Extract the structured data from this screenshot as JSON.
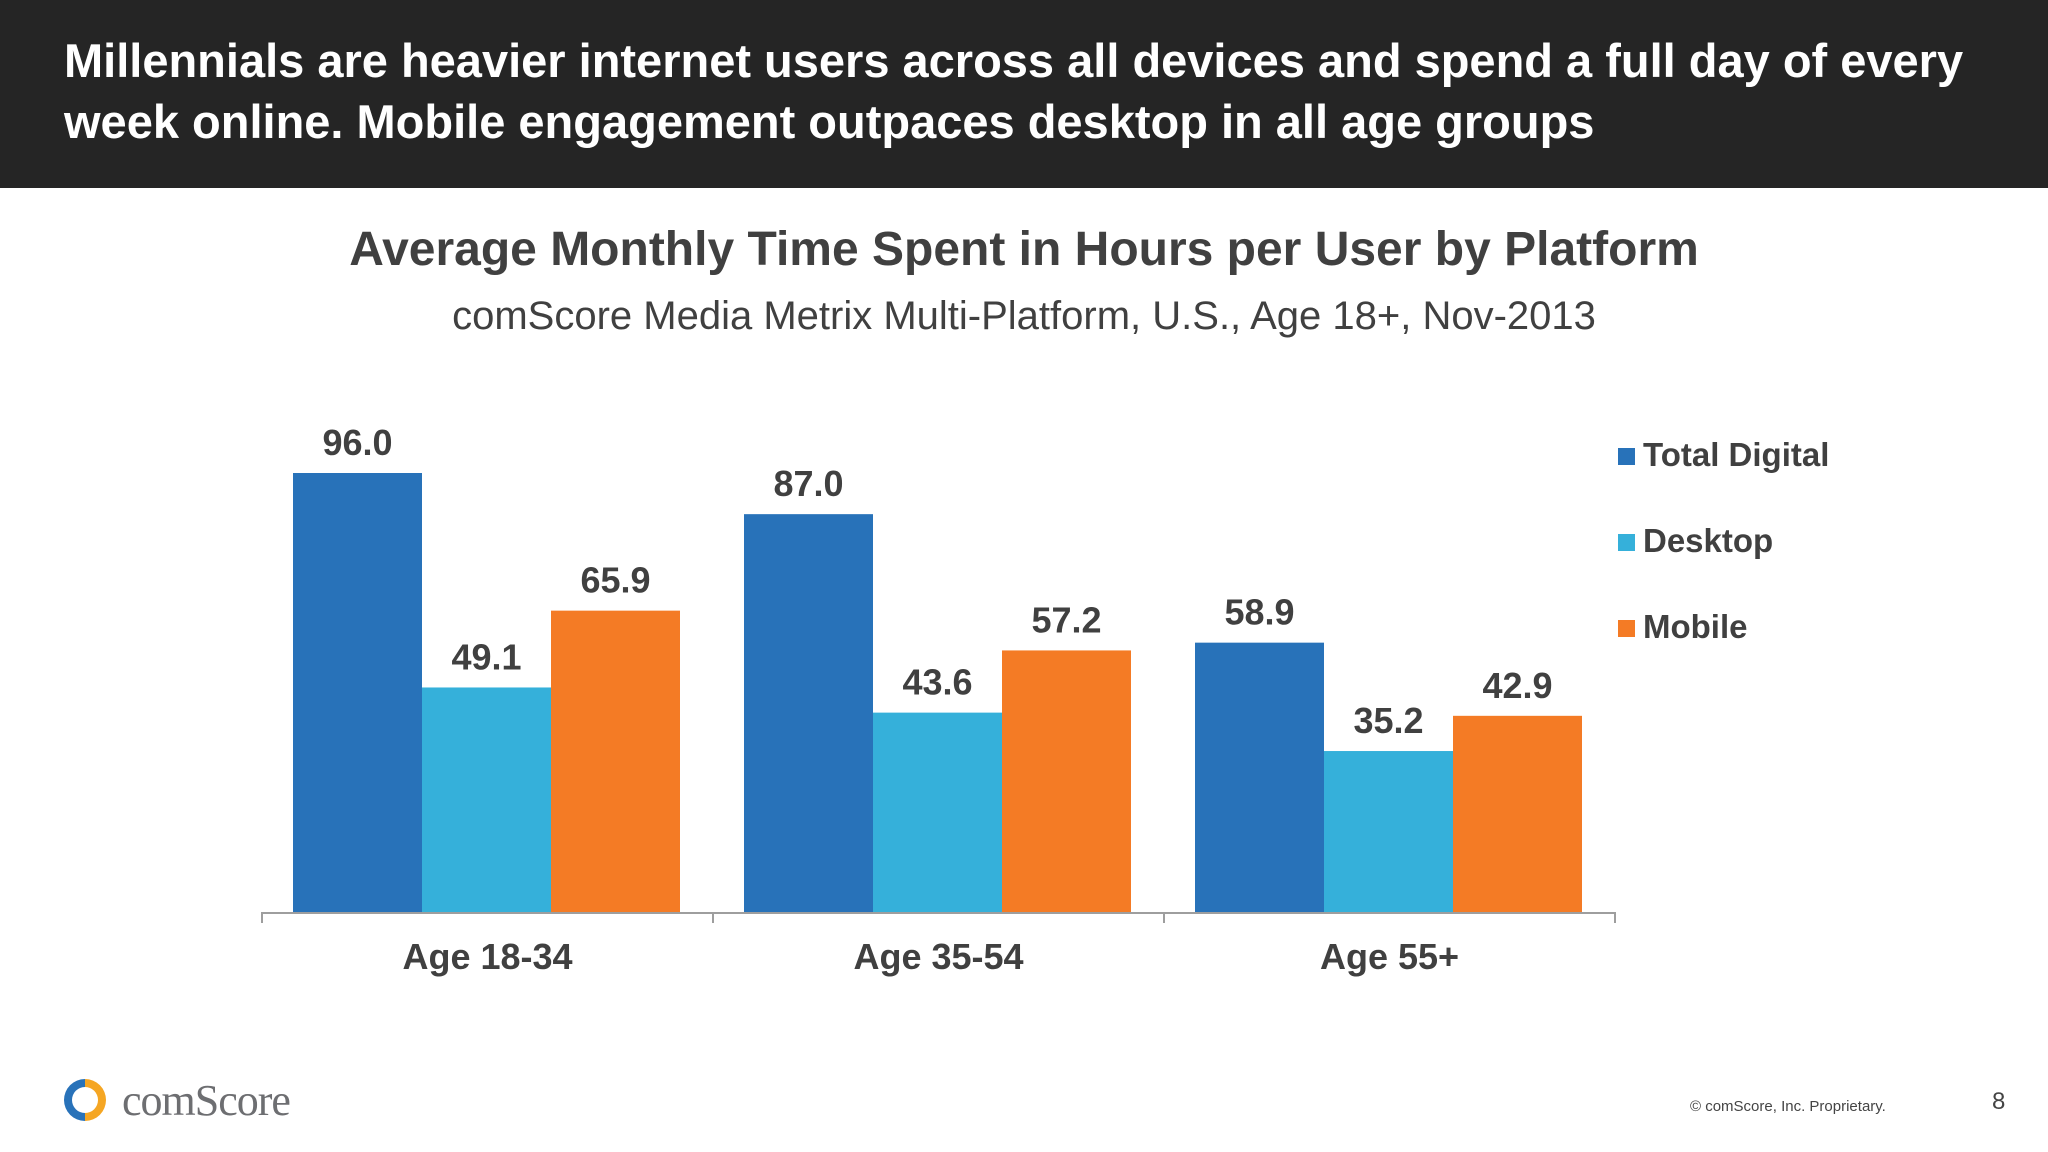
{
  "header": {
    "headline": "Millennials are heavier internet users across all devices and spend a full day of every week online. Mobile engagement outpaces desktop in all age groups"
  },
  "chart_data": {
    "type": "bar",
    "title": "Average Monthly Time Spent in Hours per User by Platform",
    "subtitle": "comScore Media Metrix Multi-Platform, U.S., Age 18+, Nov-2013",
    "categories": [
      "Age 18-34",
      "Age 35-54",
      "Age 55+"
    ],
    "series": [
      {
        "name": "Total Digital",
        "color": "#2872b9",
        "values": [
          96.0,
          87.0,
          58.9
        ]
      },
      {
        "name": "Desktop",
        "color": "#35b0da",
        "values": [
          49.1,
          43.6,
          35.2
        ]
      },
      {
        "name": "Mobile",
        "color": "#f47b25",
        "values": [
          65.9,
          57.2,
          42.9
        ]
      }
    ],
    "xlabel": "",
    "ylabel": "",
    "ylim": [
      0,
      96
    ],
    "grid": false,
    "legend": "right",
    "data_labels": true
  },
  "footer": {
    "logo_icon": "comscore-logo-icon",
    "logo_text": "comScore",
    "copyright": "© comScore, Inc. Proprietary.",
    "page_number": "8"
  }
}
